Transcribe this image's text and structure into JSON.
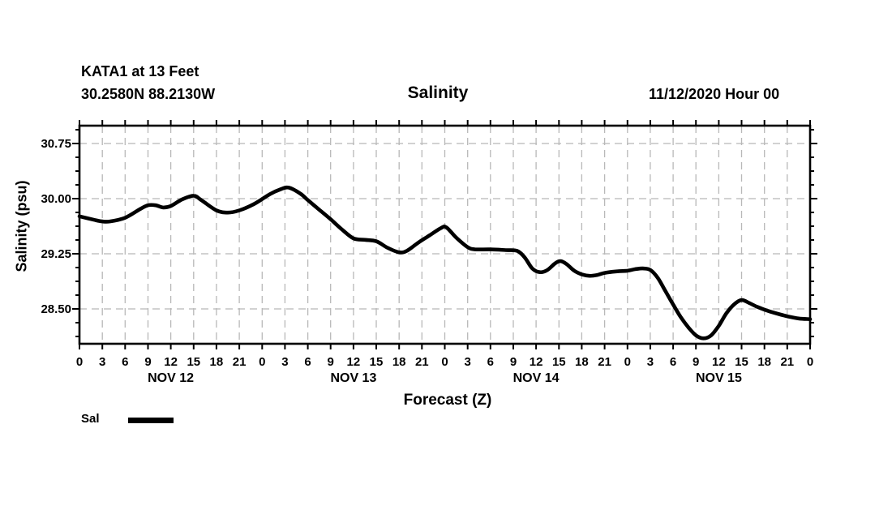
{
  "header": {
    "station_line1": "KATA1 at 13 Feet",
    "station_line2": "30.2580N 88.2130W",
    "title": "Salinity",
    "datetime": "11/12/2020 Hour 00"
  },
  "axes": {
    "y_label": "Salinity (psu)",
    "x_label": "Forecast (Z)",
    "y_ticks": [
      30.75,
      30.0,
      29.25,
      28.5
    ],
    "y_tick_labels": [
      "30.75",
      "30.00",
      "29.25",
      "28.50"
    ],
    "y_minor_step": 0.1875,
    "x_tick_step_hours": 3,
    "x_hour_label_cycle": [
      "0",
      "3",
      "6",
      "9",
      "12",
      "15",
      "18",
      "21"
    ],
    "day_labels": [
      "NOV 12",
      "NOV 13",
      "NOV 14",
      "NOV 15"
    ]
  },
  "legend": {
    "label": "Sal",
    "color": "#000000"
  },
  "colors": {
    "line": "#000000",
    "grid": "#b8b8b8",
    "frame": "#000000",
    "text": "#000000",
    "background": "#ffffff"
  },
  "chart_data": {
    "type": "line",
    "title": "Salinity",
    "station": "KATA1 at 13 Feet",
    "location": "30.2580N 88.2130W",
    "run": "11/12/2020 Hour 00",
    "xlabel": "Forecast (Z)",
    "ylabel": "Salinity (psu)",
    "x_unit": "hours from 11/12/2020 00Z",
    "xlim_hours": [
      0,
      96
    ],
    "ylim": [
      28.03,
      30.99
    ],
    "y_ticks": [
      28.5,
      29.25,
      30.0,
      30.75
    ],
    "x_axis_days": [
      "NOV 12",
      "NOV 13",
      "NOV 14",
      "NOV 15"
    ],
    "grid": true,
    "legend_position": "bottom-left",
    "series": [
      {
        "name": "Sal",
        "color": "#000000",
        "points": [
          [
            0,
            29.76
          ],
          [
            2,
            29.71
          ],
          [
            3,
            29.69
          ],
          [
            4,
            29.69
          ],
          [
            6,
            29.74
          ],
          [
            8,
            29.86
          ],
          [
            9,
            29.91
          ],
          [
            10,
            29.91
          ],
          [
            11,
            29.88
          ],
          [
            12,
            29.9
          ],
          [
            13.5,
            29.99
          ],
          [
            15,
            30.04
          ],
          [
            16,
            29.98
          ],
          [
            18,
            29.84
          ],
          [
            19.5,
            29.81
          ],
          [
            21,
            29.84
          ],
          [
            23,
            29.93
          ],
          [
            25,
            30.06
          ],
          [
            26.5,
            30.13
          ],
          [
            27.5,
            30.15
          ],
          [
            29,
            30.07
          ],
          [
            30,
            29.98
          ],
          [
            31.5,
            29.85
          ],
          [
            33,
            29.72
          ],
          [
            34.5,
            29.58
          ],
          [
            36,
            29.46
          ],
          [
            37.5,
            29.44
          ],
          [
            39,
            29.42
          ],
          [
            40.5,
            29.33
          ],
          [
            42,
            29.27
          ],
          [
            43,
            29.29
          ],
          [
            44.5,
            29.4
          ],
          [
            46,
            29.5
          ],
          [
            47.5,
            29.6
          ],
          [
            48.2,
            29.61
          ],
          [
            49.5,
            29.47
          ],
          [
            51,
            29.34
          ],
          [
            52,
            29.31
          ],
          [
            54,
            29.31
          ],
          [
            56,
            29.3
          ],
          [
            57.5,
            29.29
          ],
          [
            58.5,
            29.2
          ],
          [
            59.5,
            29.05
          ],
          [
            60.5,
            29.0
          ],
          [
            61.5,
            29.03
          ],
          [
            62.5,
            29.12
          ],
          [
            63.2,
            29.15
          ],
          [
            64,
            29.11
          ],
          [
            65,
            29.02
          ],
          [
            66,
            28.97
          ],
          [
            67,
            28.95
          ],
          [
            68,
            28.96
          ],
          [
            69,
            28.99
          ],
          [
            70.5,
            29.01
          ],
          [
            72,
            29.02
          ],
          [
            73,
            29.04
          ],
          [
            74,
            29.05
          ],
          [
            75,
            29.03
          ],
          [
            76,
            28.92
          ],
          [
            77,
            28.74
          ],
          [
            78,
            28.56
          ],
          [
            79,
            28.39
          ],
          [
            80,
            28.25
          ],
          [
            81,
            28.14
          ],
          [
            82,
            28.1
          ],
          [
            83,
            28.14
          ],
          [
            84,
            28.27
          ],
          [
            85,
            28.44
          ],
          [
            86,
            28.56
          ],
          [
            87,
            28.62
          ],
          [
            88,
            28.58
          ],
          [
            89,
            28.53
          ],
          [
            90,
            28.49
          ],
          [
            91.5,
            28.44
          ],
          [
            93,
            28.4
          ],
          [
            94.5,
            28.37
          ],
          [
            96,
            28.36
          ]
        ]
      }
    ]
  }
}
